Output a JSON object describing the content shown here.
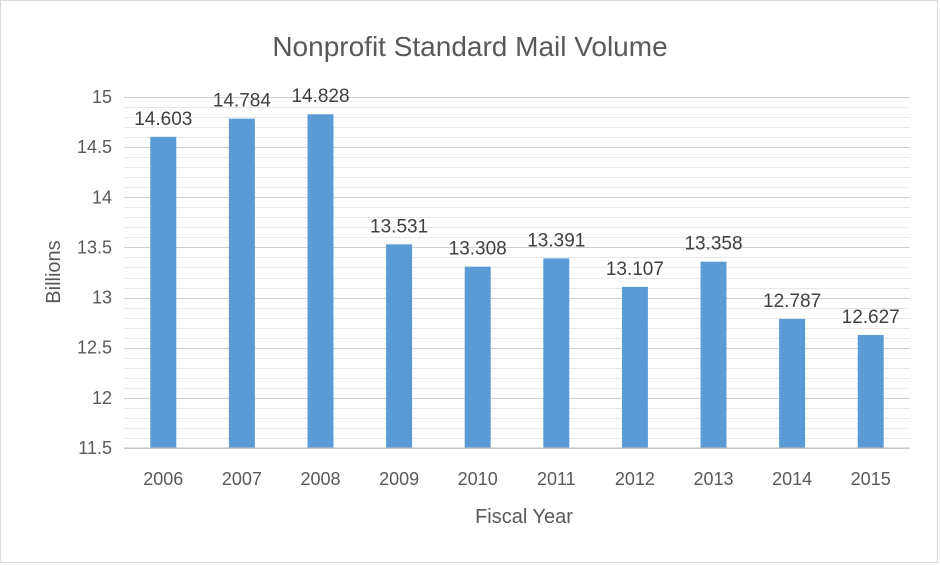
{
  "chart_data": {
    "type": "bar",
    "title": "Nonprofit Standard Mail Volume",
    "xlabel": "Fiscal Year",
    "ylabel": "Billions",
    "categories": [
      "2006",
      "2007",
      "2008",
      "2009",
      "2010",
      "2011",
      "2012",
      "2013",
      "2014",
      "2015"
    ],
    "values": [
      14.603,
      14.784,
      14.828,
      13.531,
      13.308,
      13.391,
      13.107,
      13.358,
      12.787,
      12.627
    ],
    "data_labels": [
      "14.603",
      "14.784",
      "14.828",
      "13.531",
      "13.308",
      "13.391",
      "13.107",
      "13.358",
      "12.787",
      "12.627"
    ],
    "ylim": [
      11.5,
      15
    ],
    "yticks": [
      "11.5",
      "12",
      "12.5",
      "13",
      "13.5",
      "14",
      "14.5",
      "15"
    ],
    "grid": true,
    "bar_color": "#5b9bd5",
    "grid_color": "#d9d9d9"
  }
}
